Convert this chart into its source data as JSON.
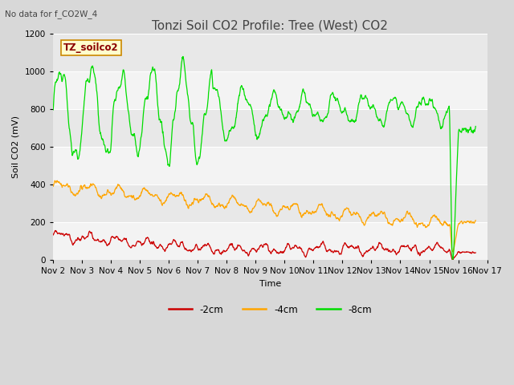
{
  "title": "Tonzi Soil CO2 Profile: Tree (West) CO2",
  "subtitle": "No data for f_CO2W_4",
  "ylabel": "Soil CO2 (mV)",
  "xlabel": "Time",
  "legend_label_box": "TZ_soilco2",
  "xlim_days": [
    2,
    17
  ],
  "ylim": [
    0,
    1200
  ],
  "yticks": [
    0,
    200,
    400,
    600,
    800,
    1000,
    1200
  ],
  "xtick_labels": [
    "Nov 2",
    "Nov 3",
    "Nov 4",
    "Nov 5",
    "Nov 6",
    "Nov 7",
    "Nov 8",
    "Nov 9",
    "Nov 10",
    "Nov 11",
    "Nov 12",
    "Nov 13",
    "Nov 14",
    "Nov 15",
    "Nov 16",
    "Nov 17"
  ],
  "line_2cm_color": "#cc0000",
  "line_4cm_color": "#ffa500",
  "line_8cm_color": "#00dd00",
  "legend_entries": [
    "-2cm",
    "-4cm",
    "-8cm"
  ],
  "legend_colors": [
    "#cc0000",
    "#ffa500",
    "#00dd00"
  ],
  "bg_color": "#d8d8d8",
  "plot_bg_color": "#e8e8e8",
  "grid_color": "#ffffff",
  "title_fontsize": 11,
  "axis_fontsize": 8,
  "tick_fontsize": 7.5,
  "figwidth": 6.4,
  "figheight": 4.8,
  "dpi": 100
}
